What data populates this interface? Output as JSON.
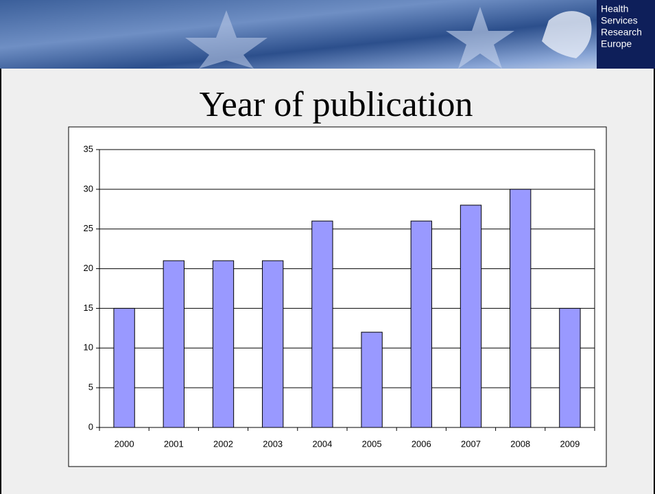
{
  "logo": [
    "Health",
    "Services",
    "Research",
    "Europe"
  ],
  "chart_data": {
    "type": "bar",
    "title": "Year of publication",
    "categories": [
      "2000",
      "2001",
      "2002",
      "2003",
      "2004",
      "2005",
      "2006",
      "2007",
      "2008",
      "2009"
    ],
    "values": [
      15,
      21,
      21,
      21,
      26,
      12,
      26,
      28,
      30,
      15
    ],
    "color": "#9999ff",
    "ylim": [
      0,
      35
    ],
    "yticks": [
      0,
      5,
      10,
      15,
      20,
      25,
      30,
      35
    ],
    "grid": true
  }
}
